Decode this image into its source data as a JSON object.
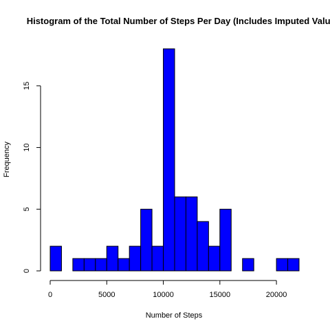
{
  "chart_data": {
    "type": "bar",
    "title": "Histogram of the Total Number of Steps Per Day (Includes Imputed Values)",
    "xlabel": "Number of Steps",
    "ylabel": "Frequency",
    "bin_width": 1000,
    "bin_starts": [
      0,
      1000,
      2000,
      3000,
      4000,
      5000,
      6000,
      7000,
      8000,
      9000,
      10000,
      11000,
      12000,
      13000,
      14000,
      15000,
      16000,
      17000,
      18000,
      19000,
      20000,
      21000
    ],
    "values": [
      2,
      0,
      1,
      1,
      1,
      2,
      1,
      2,
      5,
      2,
      18,
      6,
      6,
      4,
      2,
      5,
      0,
      1,
      0,
      0,
      1,
      1
    ],
    "xlim": [
      0,
      22000
    ],
    "ylim": [
      0,
      18
    ],
    "x_ticks": [
      0,
      5000,
      10000,
      15000,
      20000
    ],
    "y_ticks": [
      0,
      5,
      10,
      15
    ],
    "bar_color": "#0000ff",
    "grid": false
  }
}
